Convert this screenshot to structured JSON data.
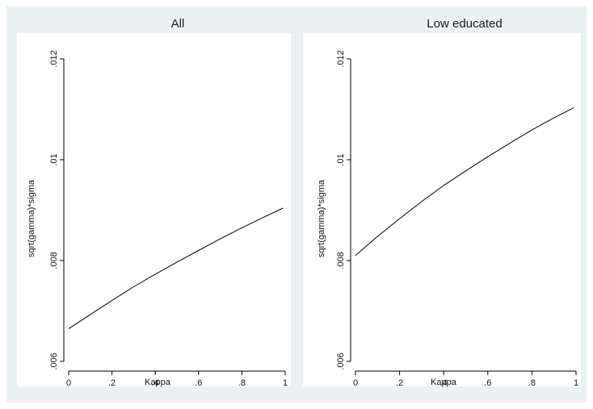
{
  "background_color": "#eaf1f3",
  "plot_color": "#ffffff",
  "line_color": "#000000",
  "chart_data": [
    {
      "type": "line",
      "title": "All",
      "xlabel": "Kappa",
      "ylabel": "sqrt(gamma)*sigma",
      "xlim": [
        0,
        1
      ],
      "ylim": [
        0.006,
        0.012
      ],
      "xticks": [
        "0",
        ".2",
        ".4",
        ".6",
        ".8",
        "1"
      ],
      "xtick_values": [
        0,
        0.2,
        0.4,
        0.6,
        0.8,
        1
      ],
      "yticks": [
        ".006",
        ".008",
        ".01",
        ".012"
      ],
      "ytick_values": [
        0.006,
        0.008,
        0.01,
        0.012
      ],
      "grid": false,
      "x": [
        0,
        0.1,
        0.2,
        0.3,
        0.4,
        0.5,
        0.6,
        0.7,
        0.8,
        0.9,
        0.99
      ],
      "y": [
        0.00665,
        0.00693,
        0.00721,
        0.00748,
        0.00773,
        0.00797,
        0.0082,
        0.00843,
        0.00865,
        0.00886,
        0.00904
      ]
    },
    {
      "type": "line",
      "title": "Low educated",
      "xlabel": "Kappa",
      "ylabel": "sqrt(gamma)*sigma",
      "xlim": [
        0,
        1
      ],
      "ylim": [
        0.006,
        0.012
      ],
      "xticks": [
        "0",
        ".2",
        ".4",
        ".6",
        ".8",
        "1"
      ],
      "xtick_values": [
        0,
        0.2,
        0.4,
        0.6,
        0.8,
        1
      ],
      "yticks": [
        ".006",
        ".008",
        ".01",
        ".012"
      ],
      "ytick_values": [
        0.006,
        0.008,
        0.01,
        0.012
      ],
      "grid": false,
      "x": [
        0,
        0.1,
        0.2,
        0.3,
        0.4,
        0.5,
        0.6,
        0.7,
        0.8,
        0.9,
        0.99
      ],
      "y": [
        0.0081,
        0.00848,
        0.00883,
        0.00917,
        0.00949,
        0.00978,
        0.01006,
        0.01033,
        0.01059,
        0.01083,
        0.01103
      ]
    }
  ]
}
